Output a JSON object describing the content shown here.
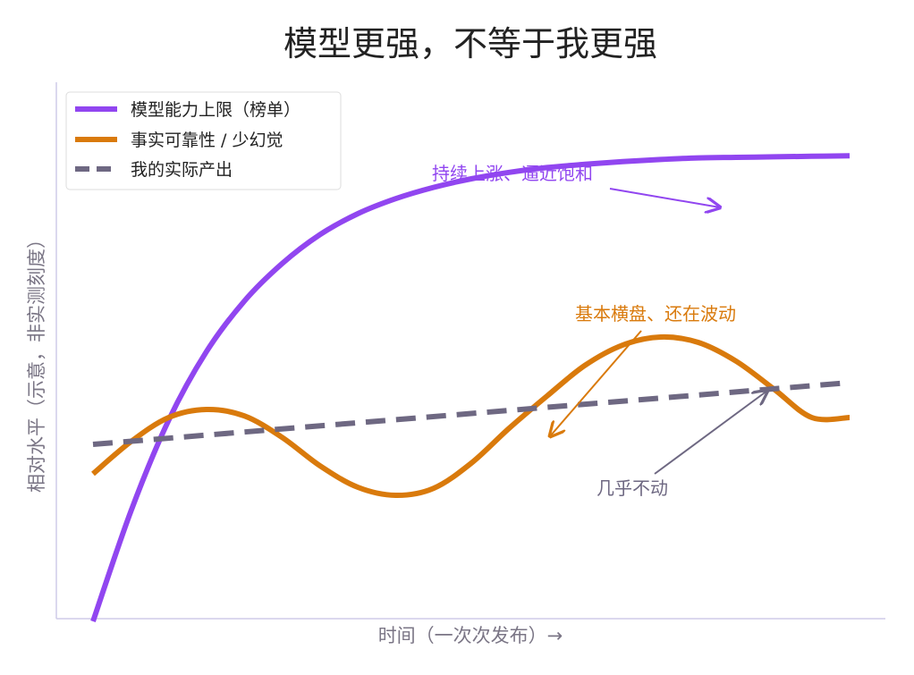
{
  "chart_data": {
    "type": "line",
    "title": "模型更强，不等于我更强",
    "xlabel": "时间（一次次发布）→",
    "ylabel": "相对水平（示意，非实测刻度）",
    "x_range": [
      0,
      10
    ],
    "ylim": [
      0,
      10
    ],
    "grid": false,
    "legend_position": "top-left",
    "series": [
      {
        "name": "模型能力上限（榜单）",
        "color": "#9146f0",
        "style": "solid",
        "x": [
          0,
          0.5,
          1,
          1.5,
          2,
          2.5,
          3,
          3.5,
          4,
          4.5,
          5,
          5.5,
          6,
          6.5,
          7,
          7.5,
          8,
          8.5,
          9,
          9.5,
          10
        ],
        "y": [
          -0.05,
          2.0,
          3.7,
          4.98,
          5.92,
          6.62,
          7.16,
          7.55,
          7.83,
          8.04,
          8.2,
          8.32,
          8.41,
          8.47,
          8.52,
          8.56,
          8.59,
          8.6,
          8.61,
          8.62,
          8.63
        ]
      },
      {
        "name": "事实可靠性 / 少幻觉",
        "color": "#d97a0c",
        "style": "solid",
        "x": [
          0,
          0.5,
          1,
          1.5,
          2,
          2.5,
          3,
          3.5,
          4,
          4.5,
          5,
          5.5,
          6,
          6.5,
          7,
          7.5,
          8,
          8.5,
          9,
          9.5,
          10
        ],
        "y": [
          2.7,
          3.3,
          3.75,
          3.9,
          3.78,
          3.38,
          2.85,
          2.45,
          2.3,
          2.43,
          2.9,
          3.55,
          4.15,
          4.72,
          5.1,
          5.25,
          5.15,
          4.8,
          4.28,
          3.75,
          3.75
        ]
      },
      {
        "name": "我的实际产出",
        "color": "#6e6882",
        "style": "dashed",
        "x": [
          0,
          10
        ],
        "y": [
          3.25,
          4.4
        ]
      }
    ],
    "annotations": [
      {
        "text": "持续上涨、逼近饱和",
        "color": "#9146f0",
        "target_x": 8.4,
        "target_y": 8.6
      },
      {
        "text": "基本横盘、还在波动",
        "color": "#d97a0c",
        "target_x": 6.0,
        "target_y": 3.45
      },
      {
        "text": "几乎不动",
        "color": "#6e6882",
        "target_x": 8.8,
        "target_y": 4.28
      }
    ]
  },
  "colors": {
    "axis": "#cfcbe8",
    "axis_label": "#7a7585",
    "title": "#222222"
  }
}
